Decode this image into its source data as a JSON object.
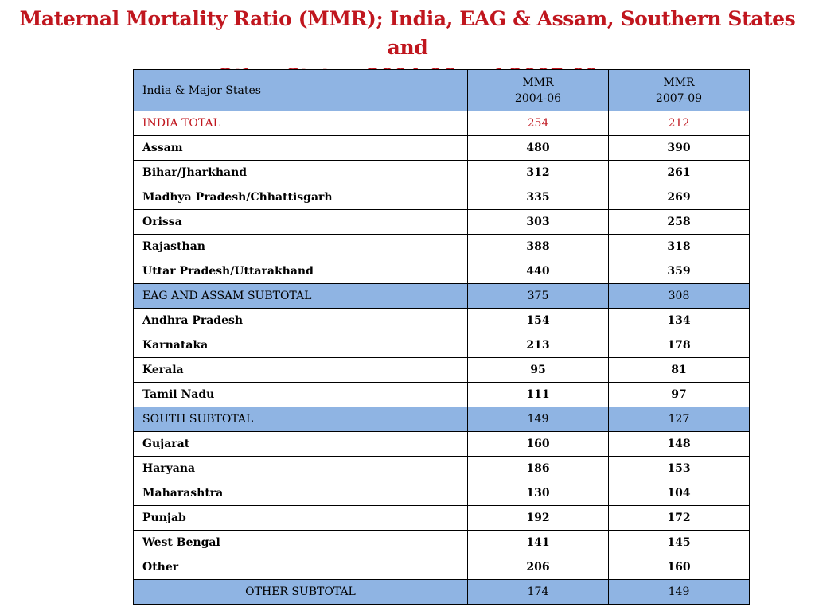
{
  "title": {
    "line1": "Maternal Mortality Ratio (MMR); India, EAG & Assam, Southern States and",
    "line2": "Other States, 2004-06 and 2007-09"
  },
  "table": {
    "header": {
      "state": "India & Major States",
      "col1_line1": "MMR",
      "col1_line2": "2004-06",
      "col2_line1": "MMR",
      "col2_line2": "2007-09"
    },
    "rows": [
      {
        "state": "INDIA TOTAL",
        "mmr_2004_06": "254",
        "mmr_2007_09": "212"
      },
      {
        "state": "Assam",
        "mmr_2004_06": "480",
        "mmr_2007_09": "390"
      },
      {
        "state": "Bihar/Jharkhand",
        "mmr_2004_06": "312",
        "mmr_2007_09": "261"
      },
      {
        "state": "Madhya Pradesh/Chhattisgarh",
        "mmr_2004_06": "335",
        "mmr_2007_09": "269"
      },
      {
        "state": "Orissa",
        "mmr_2004_06": "303",
        "mmr_2007_09": "258"
      },
      {
        "state": "Rajasthan",
        "mmr_2004_06": "388",
        "mmr_2007_09": "318"
      },
      {
        "state": "Uttar Pradesh/Uttarakhand",
        "mmr_2004_06": "440",
        "mmr_2007_09": "359"
      },
      {
        "state": "EAG AND ASSAM SUBTOTAL",
        "mmr_2004_06": "375",
        "mmr_2007_09": "308"
      },
      {
        "state": "Andhra Pradesh",
        "mmr_2004_06": "154",
        "mmr_2007_09": "134"
      },
      {
        "state": "Karnataka",
        "mmr_2004_06": "213",
        "mmr_2007_09": "178"
      },
      {
        "state": "Kerala",
        "mmr_2004_06": "95",
        "mmr_2007_09": "81"
      },
      {
        "state": "Tamil Nadu",
        "mmr_2004_06": "111",
        "mmr_2007_09": "97"
      },
      {
        "state": "SOUTH  SUBTOTAL",
        "mmr_2004_06": "149",
        "mmr_2007_09": "127"
      },
      {
        "state": "Gujarat",
        "mmr_2004_06": "160",
        "mmr_2007_09": "148"
      },
      {
        "state": "Haryana",
        "mmr_2004_06": "186",
        "mmr_2007_09": "153"
      },
      {
        "state": "Maharashtra",
        "mmr_2004_06": "130",
        "mmr_2007_09": "104"
      },
      {
        "state": "Punjab",
        "mmr_2004_06": "192",
        "mmr_2007_09": "172"
      },
      {
        "state": "West Bengal",
        "mmr_2004_06": "141",
        "mmr_2007_09": "145"
      },
      {
        "state": "Other",
        "mmr_2004_06": "206",
        "mmr_2007_09": "160"
      },
      {
        "state": "OTHER SUBTOTAL",
        "mmr_2004_06": "174",
        "mmr_2007_09": "149"
      }
    ]
  },
  "colors": {
    "title": "#c0161e",
    "header_fill": "#8fb4e3",
    "total_text": "#c0161e"
  }
}
